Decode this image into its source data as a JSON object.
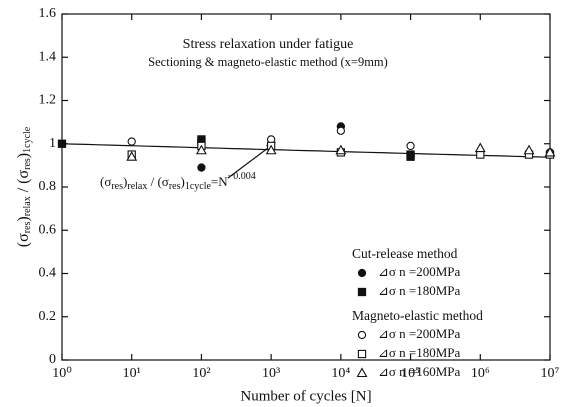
{
  "chart_data": {
    "type": "scatter",
    "title": "Stress relaxation under fatigue",
    "subtitle": "Sectioning & magneto-elastic method (x=9mm)",
    "xlabel": "Number of cycles [N]",
    "ylabel_parts": [
      "(σ",
      "res",
      ")",
      "relax",
      " / (σ",
      "res",
      ")",
      "1cycle"
    ],
    "annotation_parts": [
      "(σ",
      "res",
      ")",
      "relax",
      " / (σ",
      "res",
      ")",
      "1cycle",
      "=N",
      "−0.004"
    ],
    "fit_exponent": -0.004,
    "xscale": "log",
    "xlim": [
      1,
      10000000
    ],
    "xticks": [
      {
        "value": 1,
        "label": "10⁰"
      },
      {
        "value": 10,
        "label": "10¹"
      },
      {
        "value": 100,
        "label": "10²"
      },
      {
        "value": 1000,
        "label": "10³"
      },
      {
        "value": 10000,
        "label": "10⁴"
      },
      {
        "value": 100000,
        "label": "10⁵"
      },
      {
        "value": 1000000,
        "label": "10⁶"
      },
      {
        "value": 10000000,
        "label": "10⁷"
      }
    ],
    "ylim": [
      0,
      1.6
    ],
    "yticks": [
      0,
      0.2,
      0.4,
      0.6,
      0.8,
      1,
      1.2,
      1.4,
      1.6
    ],
    "legend_titles": [
      "Cut-release method",
      "Magneto-elastic method"
    ],
    "series": [
      {
        "name": "⊿σ n =200MPa",
        "marker": "circle",
        "filled": true,
        "color": "#111111",
        "x": [
          100,
          10000
        ],
        "values": [
          0.89,
          1.08
        ]
      },
      {
        "name": "⊿σ n =180MPa",
        "marker": "square",
        "filled": true,
        "color": "#111111",
        "x": [
          1,
          100,
          100,
          100000,
          100000
        ],
        "values": [
          1.0,
          1.01,
          1.02,
          0.94,
          0.95
        ]
      },
      {
        "name": "⊿σ n =200MPa",
        "marker": "circle",
        "filled": false,
        "color": "#111111",
        "x": [
          10,
          1000,
          10000,
          100000,
          10000000
        ],
        "values": [
          1.01,
          1.02,
          1.06,
          0.99,
          0.96
        ]
      },
      {
        "name": "⊿σ n =180MPa",
        "marker": "square",
        "filled": false,
        "color": "#111111",
        "x": [
          10,
          100,
          1000,
          10000,
          1000000,
          5000000,
          10000000
        ],
        "values": [
          0.95,
          0.99,
          0.99,
          0.96,
          0.95,
          0.95,
          0.95
        ]
      },
      {
        "name": "⊿σ n =160MPa",
        "marker": "triangle",
        "filled": false,
        "color": "#111111",
        "x": [
          10,
          100,
          1000,
          10000,
          1000000,
          5000000,
          10000000
        ],
        "values": [
          0.94,
          0.97,
          0.97,
          0.97,
          0.98,
          0.97,
          0.96
        ]
      }
    ]
  }
}
